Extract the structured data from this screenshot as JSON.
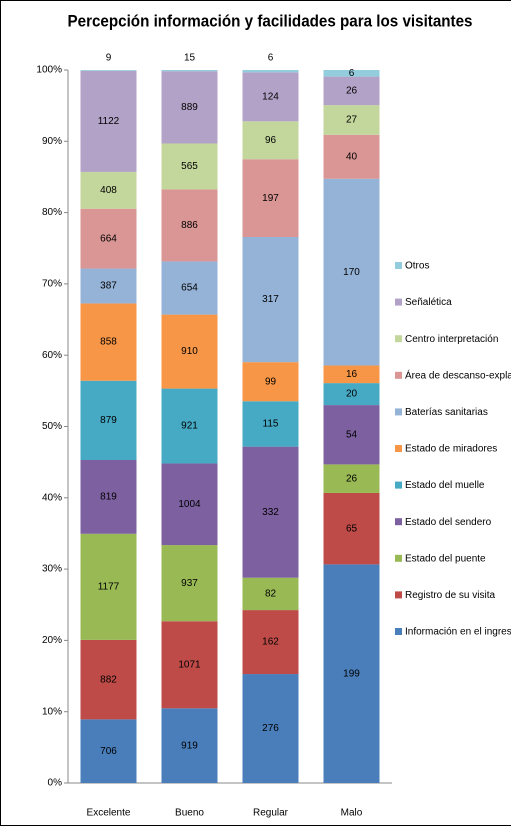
{
  "chart_data": {
    "type": "bar",
    "stacking": "percent",
    "title": "Percepción información y facilidades para los visitantes",
    "categories": [
      "Excelente",
      "Bueno",
      "Regular",
      "Malo"
    ],
    "series": [
      {
        "name": "Información en el ingreso",
        "color": "#4a7ebb",
        "values": [
          706,
          919,
          276,
          199
        ]
      },
      {
        "name": "Registro de su visita",
        "color": "#be4b48",
        "values": [
          882,
          1071,
          162,
          65
        ]
      },
      {
        "name": "Estado del puente",
        "color": "#98b954",
        "values": [
          1177,
          937,
          82,
          26
        ]
      },
      {
        "name": "Estado del sendero",
        "color": "#7d60a0",
        "values": [
          819,
          1004,
          332,
          54
        ]
      },
      {
        "name": "Estado del muelle",
        "color": "#46aac5",
        "values": [
          879,
          921,
          115,
          20
        ]
      },
      {
        "name": "Estado de miradores",
        "color": "#f79646",
        "values": [
          858,
          910,
          99,
          16
        ]
      },
      {
        "name": "Baterías sanitarias",
        "color": "#95b3d7",
        "values": [
          387,
          654,
          317,
          170
        ]
      },
      {
        "name": "Área de descanso-explanada",
        "color": "#d99694",
        "values": [
          664,
          886,
          197,
          40
        ]
      },
      {
        "name": "Centro interpretación",
        "color": "#c3d69b",
        "values": [
          408,
          565,
          96,
          27
        ]
      },
      {
        "name": "Señalética",
        "color": "#b3a2c7",
        "values": [
          1122,
          889,
          124,
          26
        ]
      },
      {
        "name": "Otros",
        "color": "#93cddd",
        "values": [
          9,
          15,
          6,
          6
        ]
      }
    ],
    "ylim": [
      0,
      100
    ],
    "yticks": [
      {
        "value": 0,
        "label": "0%"
      },
      {
        "value": 10,
        "label": "10%"
      },
      {
        "value": 20,
        "label": "20%"
      },
      {
        "value": 30,
        "label": "30%"
      },
      {
        "value": 40,
        "label": "40%"
      },
      {
        "value": 50,
        "label": "50%"
      },
      {
        "value": 60,
        "label": "60%"
      },
      {
        "value": 70,
        "label": "70%"
      },
      {
        "value": 80,
        "label": "80%"
      },
      {
        "value": 90,
        "label": "90%"
      },
      {
        "value": 100,
        "label": "100%"
      }
    ],
    "legend": "right"
  }
}
